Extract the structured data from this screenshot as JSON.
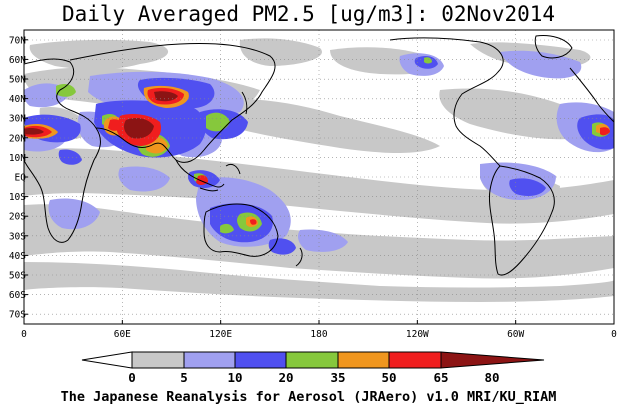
{
  "title": "Daily Averaged PM2.5 [ug/m3]: 02Nov2014",
  "footer": "The Japanese Reanalysis for Aerosol (JRAero) v1.0 MRI/KU_RIAM",
  "map": {
    "projection": "plate-carree",
    "lon_range": [
      0,
      360
    ],
    "lat_range": [
      -75,
      75
    ],
    "grid": "dotted",
    "lat_ticks": [
      {
        "lat": 70,
        "label": "70N"
      },
      {
        "lat": 60,
        "label": "60N"
      },
      {
        "lat": 50,
        "label": "50N"
      },
      {
        "lat": 40,
        "label": "40N"
      },
      {
        "lat": 30,
        "label": "30N"
      },
      {
        "lat": 20,
        "label": "20N"
      },
      {
        "lat": 10,
        "label": "10N"
      },
      {
        "lat": 0,
        "label": "EQ"
      },
      {
        "lat": -10,
        "label": "10S"
      },
      {
        "lat": -20,
        "label": "20S"
      },
      {
        "lat": -30,
        "label": "30S"
      },
      {
        "lat": -40,
        "label": "40S"
      },
      {
        "lat": -50,
        "label": "50S"
      },
      {
        "lat": -60,
        "label": "60S"
      },
      {
        "lat": -70,
        "label": "70S"
      }
    ],
    "lon_ticks": [
      {
        "lon": 0,
        "label": "0"
      },
      {
        "lon": 60,
        "label": "60E"
      },
      {
        "lon": 120,
        "label": "120E"
      },
      {
        "lon": 180,
        "label": "180"
      },
      {
        "lon": 240,
        "label": "120W"
      },
      {
        "lon": 300,
        "label": "60W"
      },
      {
        "lon": 360,
        "label": "0"
      }
    ]
  },
  "legend": {
    "colors": {
      "lt5": "#ffffff",
      "c5_10": "#c8c8c8",
      "c10_20": "#a0a0f0",
      "c20_35": "#5050f0",
      "c35_50": "#86c83c",
      "c50_65": "#f0961e",
      "c65_80": "#f01e1e",
      "gt80": "#8c1414"
    },
    "bins": [
      {
        "key": "lt5",
        "color": "#ffffff"
      },
      {
        "key": "c5_10",
        "color": "#c8c8c8"
      },
      {
        "key": "c10_20",
        "color": "#a0a0f0"
      },
      {
        "key": "c20_35",
        "color": "#5050f0"
      },
      {
        "key": "c35_50",
        "color": "#86c83c"
      },
      {
        "key": "c50_65",
        "color": "#f0961e"
      },
      {
        "key": "c65_80",
        "color": "#f01e1e"
      },
      {
        "key": "gt80",
        "color": "#8c1414"
      }
    ],
    "labels": [
      "0",
      "5",
      "10",
      "20",
      "35",
      "50",
      "65",
      "80"
    ]
  }
}
